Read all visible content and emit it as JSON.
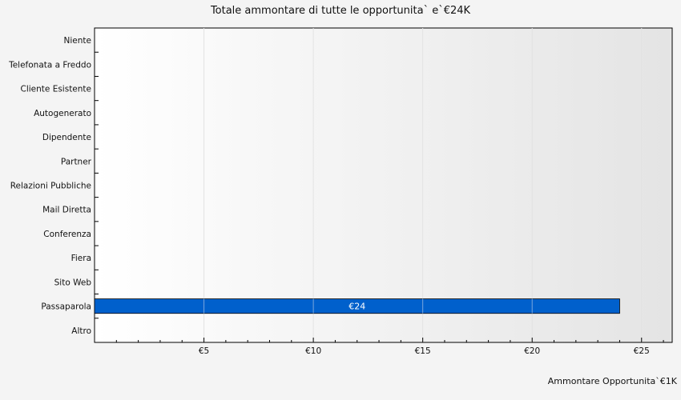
{
  "chart_data": {
    "type": "bar",
    "orientation": "horizontal",
    "title": "Totale ammontare di tutte le opportunita` e`€24K",
    "xlabel": "Ammontare Opportunita`€1K",
    "ylabel": "",
    "categories": [
      "Niente",
      "Telefonata a Freddo",
      "Cliente Esistente",
      "Autogenerato",
      "Dipendente",
      "Partner",
      "Relazioni Pubbliche",
      "Mail Diretta",
      "Conferenza",
      "Fiera",
      "Sito Web",
      "Passaparola",
      "Altro"
    ],
    "values": [
      0,
      0,
      0,
      0,
      0,
      0,
      0,
      0,
      0,
      0,
      0,
      24,
      0
    ],
    "data_labels": [
      "",
      "",
      "",
      "",
      "",
      "",
      "",
      "",
      "",
      "",
      "",
      "€24",
      ""
    ],
    "xlim": [
      0,
      26.4
    ],
    "x_ticks": [
      5,
      10,
      15,
      20,
      25
    ],
    "x_tick_labels": [
      "€5",
      "€10",
      "€15",
      "€20",
      "€25"
    ],
    "bar_color": "#0060cc",
    "grid": true,
    "legend": "none"
  }
}
